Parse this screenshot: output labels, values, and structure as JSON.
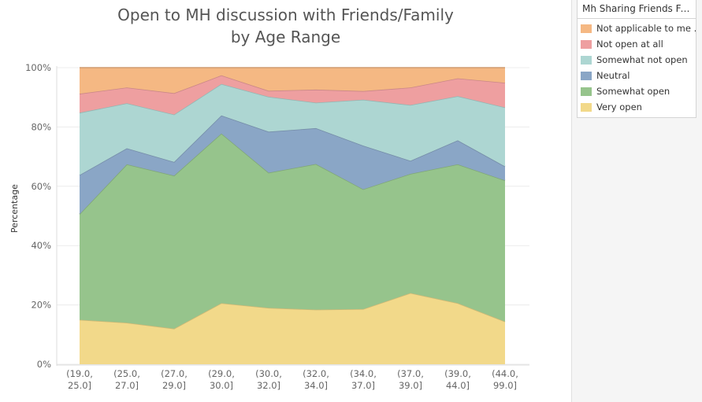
{
  "chart_data": {
    "type": "area",
    "title_lines": [
      "Open to MH discussion with Friends/Family",
      "by Age Range"
    ],
    "xlabel": "",
    "ylabel": "Percentage",
    "stacked": true,
    "ylim": [
      0,
      100
    ],
    "yticks": [
      0,
      20,
      40,
      60,
      80,
      100
    ],
    "ytick_labels": [
      "0%",
      "20%",
      "40%",
      "60%",
      "80%",
      "100%"
    ],
    "grid": true,
    "categories": [
      [
        "(19.0,",
        "25.0]"
      ],
      [
        "(25.0,",
        "27.0]"
      ],
      [
        "(27.0,",
        "29.0]"
      ],
      [
        "(29.0,",
        "30.0]"
      ],
      [
        "(30.0,",
        "32.0]"
      ],
      [
        "(32.0,",
        "34.0]"
      ],
      [
        "(34.0,",
        "37.0]"
      ],
      [
        "(37.0,",
        "39.0]"
      ],
      [
        "(39.0,",
        "44.0]"
      ],
      [
        "(44.0,",
        "99.0]"
      ]
    ],
    "legend_position": "right",
    "legend_title": "Mh Sharing Friends Fa...",
    "series": [
      {
        "name": "Very open",
        "color": "#f2d98a",
        "values": [
          15.0,
          14.0,
          12.0,
          20.6,
          19.0,
          18.4,
          18.6,
          24.0,
          20.6,
          14.4
        ]
      },
      {
        "name": "Somewhat open",
        "color": "#96c48c",
        "values": [
          35.6,
          53.4,
          51.6,
          57.2,
          45.6,
          49.1,
          40.4,
          40.2,
          46.8,
          47.6
        ]
      },
      {
        "name": "Neutral",
        "color": "#8aa6c6",
        "values": [
          13.2,
          5.4,
          4.6,
          6.1,
          13.8,
          12.1,
          14.7,
          4.4,
          8.1,
          4.7
        ]
      },
      {
        "name": "Somewhat not open",
        "color": "#add6d2",
        "values": [
          21.0,
          15.2,
          16.0,
          10.6,
          11.8,
          8.6,
          15.5,
          18.8,
          14.9,
          19.9
        ]
      },
      {
        "name": "Not open at all",
        "color": "#ee9fa0",
        "values": [
          6.4,
          5.3,
          7.2,
          2.9,
          2.0,
          4.4,
          2.9,
          5.9,
          6.0,
          8.3
        ]
      },
      {
        "name": "Not applicable to me ..",
        "color": "#f5b883",
        "values": [
          8.8,
          6.7,
          8.6,
          2.6,
          7.8,
          7.4,
          7.9,
          6.7,
          3.6,
          5.1
        ]
      }
    ]
  }
}
